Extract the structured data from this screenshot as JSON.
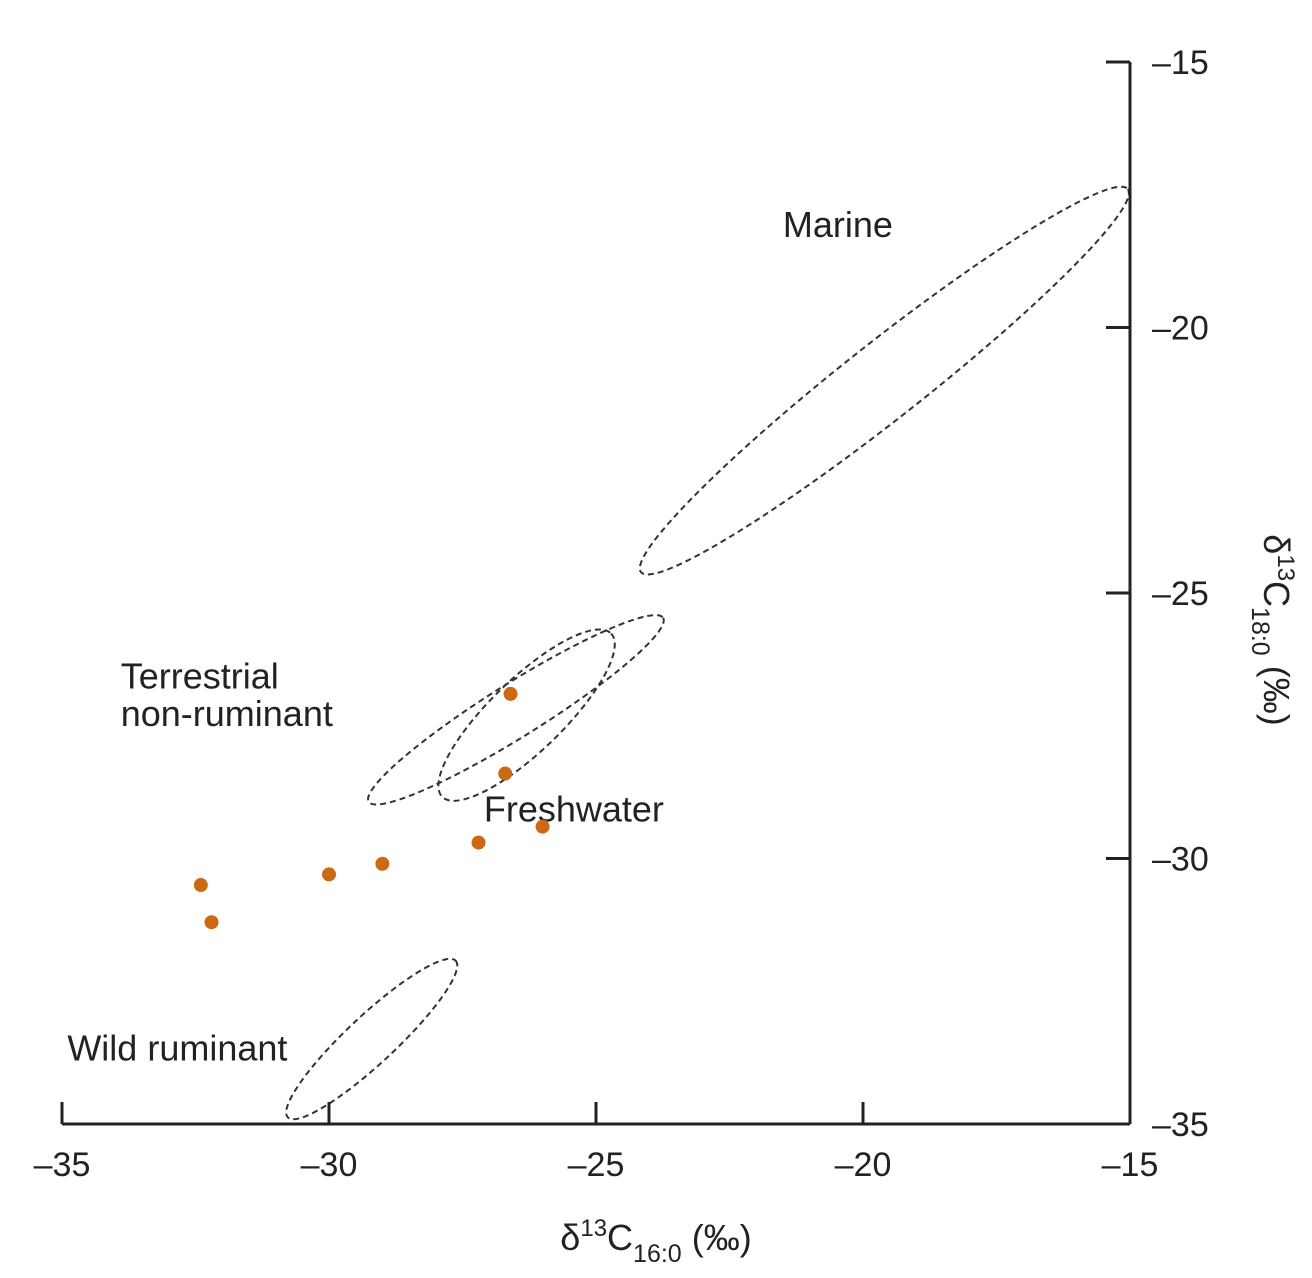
{
  "chart_data": {
    "type": "scatter",
    "xlabel": {
      "prefix": "δ",
      "sup": "13",
      "main": "C",
      "sub": "16:0",
      "suffix": " (‰)"
    },
    "ylabel": {
      "prefix": "δ",
      "sup": "13",
      "main": "C",
      "sub": "18:0",
      "suffix": " (‰)"
    },
    "xlim": [
      -35,
      -15
    ],
    "ylim": [
      -35,
      -15
    ],
    "x_ticks": [
      -35,
      -30,
      -25,
      -20,
      -15
    ],
    "y_ticks": [
      -35,
      -30,
      -25,
      -20,
      -15
    ],
    "x_tick_labels": [
      "–35",
      "–30",
      "–25",
      "–20",
      "–15"
    ],
    "y_tick_labels": [
      "–35",
      "–30",
      "–25",
      "–20",
      "–15"
    ],
    "y_axis_side": "right",
    "grid": false,
    "point_color": "#cc6a14",
    "points": [
      {
        "x": -32.4,
        "y": -30.5
      },
      {
        "x": -32.2,
        "y": -31.2
      },
      {
        "x": -30.0,
        "y": -30.3
      },
      {
        "x": -29.0,
        "y": -30.1
      },
      {
        "x": -27.2,
        "y": -29.7
      },
      {
        "x": -26.6,
        "y": -26.9
      },
      {
        "x": -26.7,
        "y": -28.4
      },
      {
        "x": -26.0,
        "y": -29.4
      }
    ],
    "regions": [
      {
        "label": "Marine",
        "center": [
          -19.6,
          -21.0
        ],
        "rx_data": 5.8,
        "ry_data": 0.72,
        "angle_deg": -38.2
      },
      {
        "label": "Terrestrial non-ruminant",
        "center": [
          -26.5,
          -27.2
        ],
        "rx_data": 3.25,
        "ry_data": 0.5,
        "angle_deg": -32
      },
      {
        "label": "Freshwater",
        "center": [
          -26.3,
          -27.3
        ],
        "rx_data": 2.2,
        "ry_data": 0.68,
        "angle_deg": -44
      },
      {
        "label": "Wild ruminant",
        "center": [
          -29.2,
          -33.4
        ],
        "rx_data": 2.15,
        "ry_data": 0.45,
        "angle_deg": -43
      }
    ],
    "annotations": [
      {
        "text": "Marine",
        "x": -21.5,
        "y": -18.3,
        "anchor": "start"
      },
      {
        "text": "Terrestrial",
        "x": -33.9,
        "y": -26.8,
        "anchor": "start"
      },
      {
        "text": "non-ruminant",
        "x": -33.9,
        "y": -27.5,
        "anchor": "start"
      },
      {
        "text": "Freshwater",
        "x": -27.1,
        "y": -29.3,
        "anchor": "start"
      },
      {
        "text": "Wild ruminant",
        "x": -34.9,
        "y": -33.8,
        "anchor": "start"
      }
    ]
  }
}
